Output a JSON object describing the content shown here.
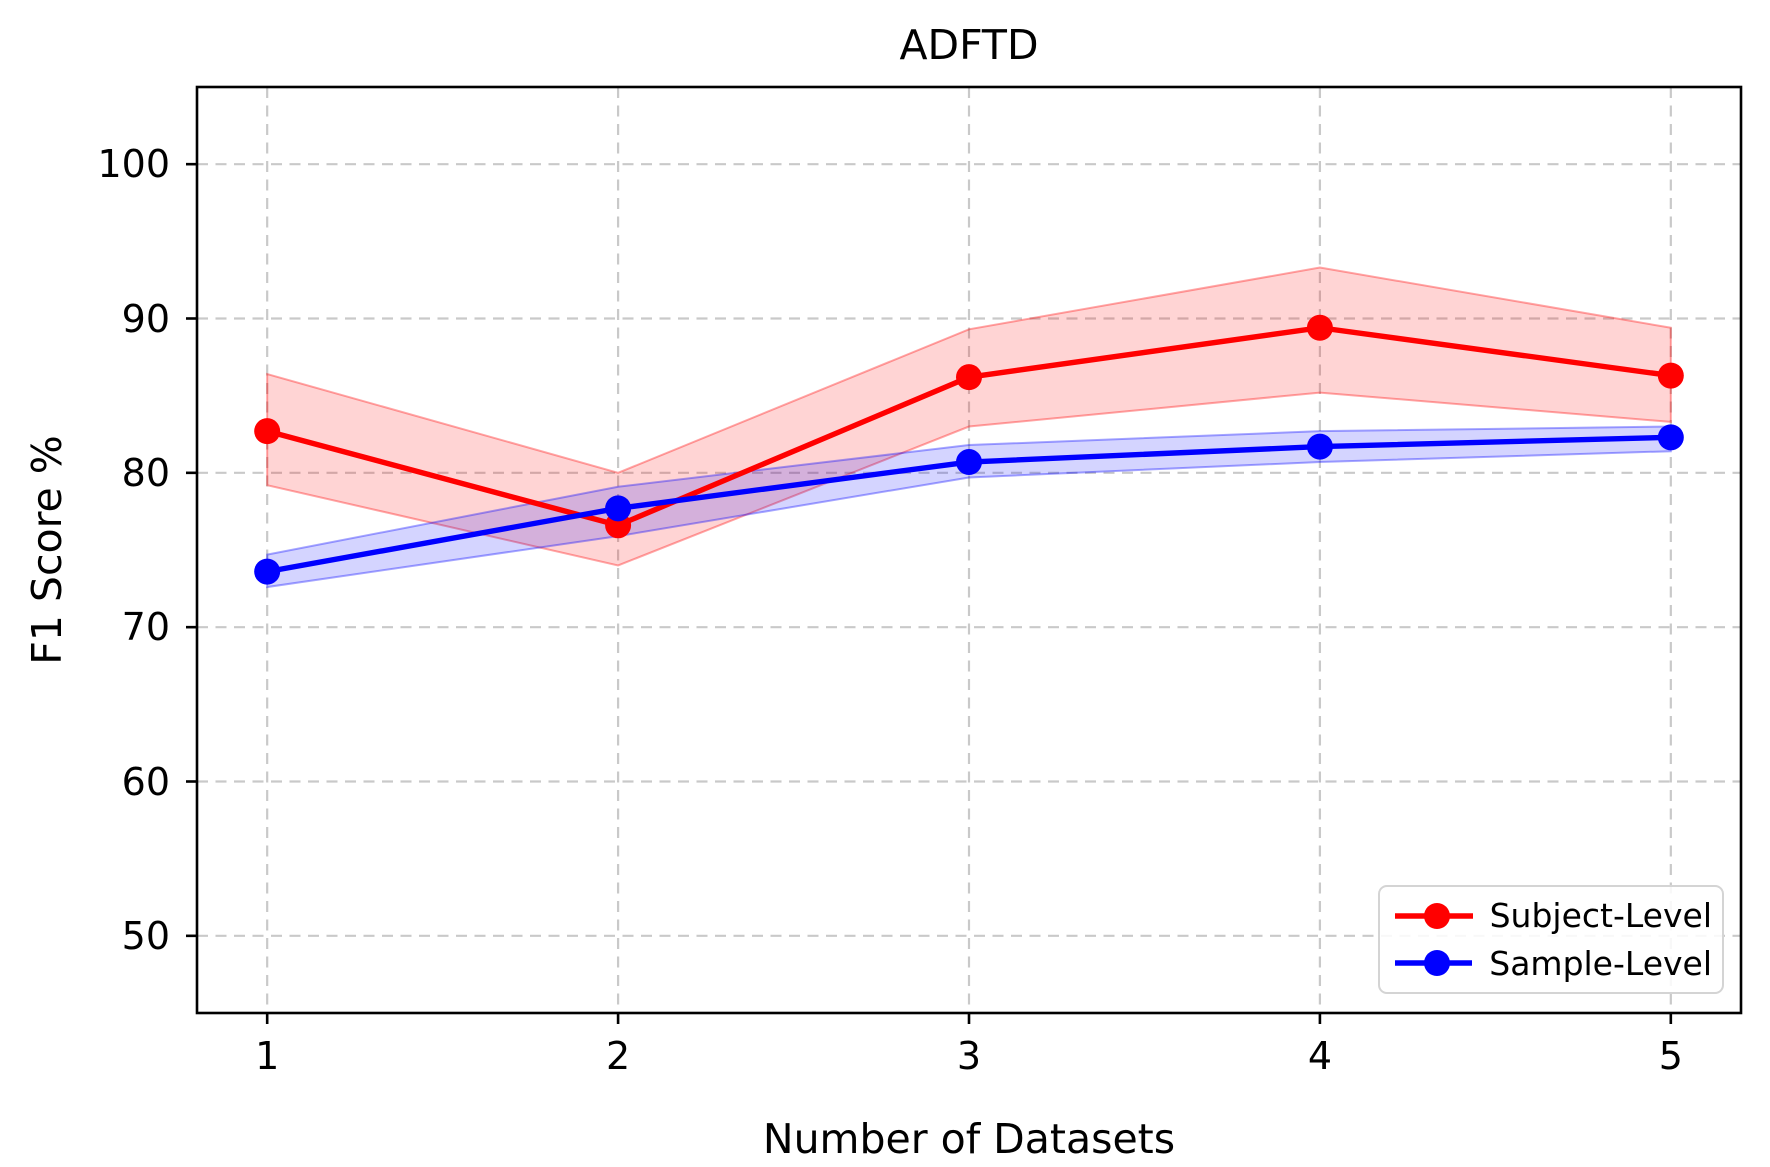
{
  "title": "ADFTD",
  "axes": {
    "xlabel": "Number of Datasets",
    "ylabel": "F1 Score %"
  },
  "legend": {
    "position": "lower-right",
    "entries": [
      "Subject-Level",
      "Sample-Level"
    ]
  },
  "chart_data": {
    "type": "line",
    "title": "ADFTD",
    "xlabel": "Number of Datasets",
    "ylabel": "F1 Score %",
    "x": [
      1,
      2,
      3,
      4,
      5
    ],
    "xtick_labels": [
      "1",
      "2",
      "3",
      "4",
      "5"
    ],
    "yticks": [
      50,
      60,
      70,
      80,
      90,
      100
    ],
    "ytick_labels": [
      "50",
      "60",
      "70",
      "80",
      "90",
      "100"
    ],
    "xlim": [
      0.8,
      5.2
    ],
    "ylim": [
      45,
      105
    ],
    "grid": true,
    "grid_style": "dashed",
    "legend_position": "lower right",
    "series": [
      {
        "name": "Subject-Level",
        "color": "#ff0000",
        "marker": "circle",
        "values": [
          82.7,
          76.6,
          86.2,
          89.4,
          86.3
        ],
        "band_upper": [
          86.4,
          80.0,
          89.3,
          93.3,
          89.4
        ],
        "band_lower": [
          79.2,
          74.0,
          83.0,
          85.2,
          83.3
        ]
      },
      {
        "name": "Sample-Level",
        "color": "#0000ff",
        "marker": "circle",
        "values": [
          73.6,
          77.7,
          80.7,
          81.7,
          82.3
        ],
        "band_upper": [
          74.7,
          79.1,
          81.8,
          82.7,
          83.0
        ],
        "band_lower": [
          72.6,
          75.9,
          79.7,
          80.7,
          81.4
        ]
      }
    ],
    "band_fill_opacity": 0.17,
    "band_edge_opacity": 0.35
  },
  "colors": {
    "background": "#ffffff",
    "text": "#000000",
    "grid": "#c9c9c9",
    "spine": "#000000",
    "legend_border": "#d4d4d4"
  }
}
